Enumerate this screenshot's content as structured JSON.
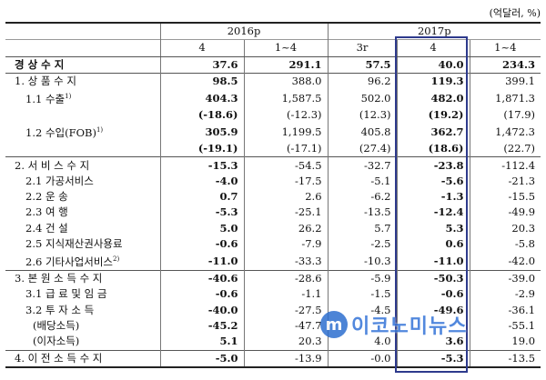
{
  "unit_label": "(억달러, %)",
  "years": {
    "y2016": "2016p",
    "y2017": "2017p"
  },
  "periods": [
    "4",
    "1~4",
    "3r",
    "4",
    "1~4"
  ],
  "rows": [
    {
      "label": "경 상 수 지",
      "values": [
        "37.6",
        "291.1",
        "57.5",
        "40.0",
        "234.3"
      ],
      "bold": true,
      "cls": "sep"
    },
    {
      "label": "1. 상 품 수 지",
      "values": [
        "98.5",
        "388.0",
        "96.2",
        "119.3",
        "399.1"
      ],
      "bold_cols": [
        0,
        3
      ],
      "cls": "sep"
    },
    {
      "label": "1.1 수출",
      "sup": "1)",
      "values": [
        "404.3",
        "1,587.5",
        "502.0",
        "482.0",
        "1,871.3"
      ],
      "bold_cols": [
        0,
        3
      ]
    },
    {
      "label": "",
      "values": [
        "(-18.6)",
        "(-12.3)",
        "(12.3)",
        "(19.2)",
        "(17.9)"
      ],
      "bold_cols": [
        0,
        3
      ]
    },
    {
      "label": "1.2 수입(FOB)",
      "sup": "1)",
      "values": [
        "305.9",
        "1,199.5",
        "405.8",
        "362.7",
        "1,472.3"
      ],
      "bold_cols": [
        0,
        3
      ]
    },
    {
      "label": "",
      "values": [
        "(-19.1)",
        "(-17.1)",
        "(27.4)",
        "(18.6)",
        "(22.7)"
      ],
      "bold_cols": [
        0,
        3
      ]
    },
    {
      "label": "2. 서 비 스 수 지",
      "values": [
        "-15.3",
        "-54.5",
        "-32.7",
        "-23.8",
        "-112.4"
      ],
      "bold_cols": [
        0,
        3
      ],
      "cls": "sep"
    },
    {
      "label": "2.1 가공서비스",
      "values": [
        "-4.0",
        "-17.5",
        "-5.1",
        "-5.6",
        "-21.3"
      ],
      "bold_cols": [
        0,
        3
      ]
    },
    {
      "label": "2.2 운 송",
      "values": [
        "0.7",
        "2.6",
        "-6.2",
        "-1.3",
        "-15.5"
      ],
      "bold_cols": [
        0,
        3
      ]
    },
    {
      "label": "2.3 여 행",
      "values": [
        "-5.3",
        "-25.1",
        "-13.5",
        "-12.4",
        "-49.9"
      ],
      "bold_cols": [
        0,
        3
      ]
    },
    {
      "label": "2.4 건 설",
      "values": [
        "5.0",
        "26.2",
        "5.7",
        "5.3",
        "20.3"
      ],
      "bold_cols": [
        0,
        3
      ]
    },
    {
      "label": "2.5 지식재산권사용료",
      "values": [
        "-0.6",
        "-7.9",
        "-2.5",
        "0.6",
        "-5.8"
      ],
      "bold_cols": [
        0,
        3
      ]
    },
    {
      "label": "2.6 기타사업서비스",
      "sup": "2)",
      "values": [
        "-11.0",
        "-33.3",
        "-10.3",
        "-11.0",
        "-42.0"
      ],
      "bold_cols": [
        0,
        3
      ]
    },
    {
      "label": "3. 본 원 소 득 수 지",
      "values": [
        "-40.6",
        "-28.6",
        "-5.9",
        "-50.3",
        "-39.0"
      ],
      "bold_cols": [
        0,
        3
      ],
      "cls": "sep"
    },
    {
      "label": "3.1 급 료 및 임 금",
      "values": [
        "-0.6",
        "-1.1",
        "-1.5",
        "-0.6",
        "-2.9"
      ],
      "bold_cols": [
        0,
        3
      ]
    },
    {
      "label": "3.2 투 자 소 득",
      "values": [
        "-40.0",
        "-27.5",
        "-4.5",
        "-49.6",
        "-36.1"
      ],
      "bold_cols": [
        0,
        3
      ]
    },
    {
      "label": "(배당소득)",
      "values": [
        "-45.2",
        "-47.7",
        "",
        "",
        "-55.1"
      ],
      "bold_cols": [
        0,
        3
      ],
      "indent": true
    },
    {
      "label": "(이자소득)",
      "values": [
        "5.1",
        "20.3",
        "4.0",
        "3.6",
        "19.0"
      ],
      "bold_cols": [
        0,
        3
      ],
      "indent": true
    },
    {
      "label": "4. 이 전 소 득 수 지",
      "values": [
        "-5.0",
        "-13.9",
        "-0.0",
        "-5.3",
        "-13.5"
      ],
      "bold_cols": [
        0,
        3
      ],
      "cls": "sep bottom"
    }
  ],
  "watermark": {
    "logo_letter": "m",
    "text": "이코노미뉴스"
  },
  "colors": {
    "highlight": "#2e3a8c",
    "watermark": "#3574d8"
  }
}
